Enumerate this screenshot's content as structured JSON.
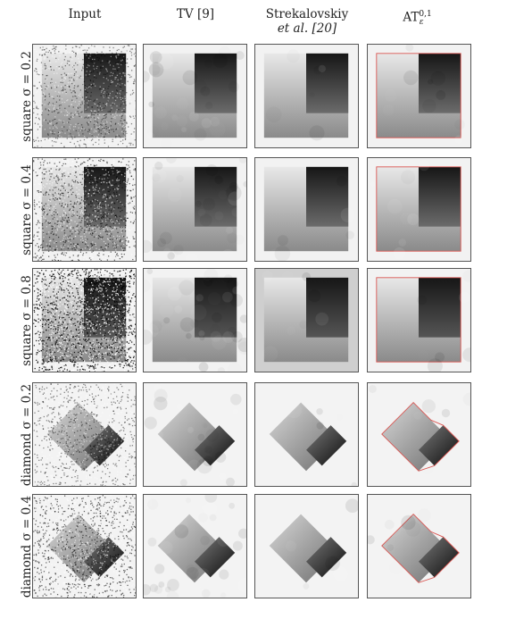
{
  "columns": [
    {
      "label": "Input"
    },
    {
      "label": "TV [9]"
    },
    {
      "label": "Strekalovskiy",
      "label2": "et al. [20]"
    },
    {
      "label": "AT",
      "sup": "0,1",
      "sub": "ε"
    }
  ],
  "rows": [
    {
      "shape": "square",
      "sigma": "0.2",
      "label": "square σ = 0.2"
    },
    {
      "shape": "square",
      "sigma": "0.4",
      "label": "square σ = 0.4"
    },
    {
      "shape": "square",
      "sigma": "0.8",
      "label": "square σ = 0.8"
    },
    {
      "shape": "diamond",
      "sigma": "0.2",
      "label": "diamond σ = 0.2"
    },
    {
      "shape": "diamond",
      "sigma": "0.4",
      "label": "diamond σ = 0.4"
    }
  ],
  "methods": [
    "input",
    "tv",
    "strekalovskiy",
    "at"
  ],
  "colors": {
    "border": "#555555",
    "at_contour": "#d9534f"
  }
}
